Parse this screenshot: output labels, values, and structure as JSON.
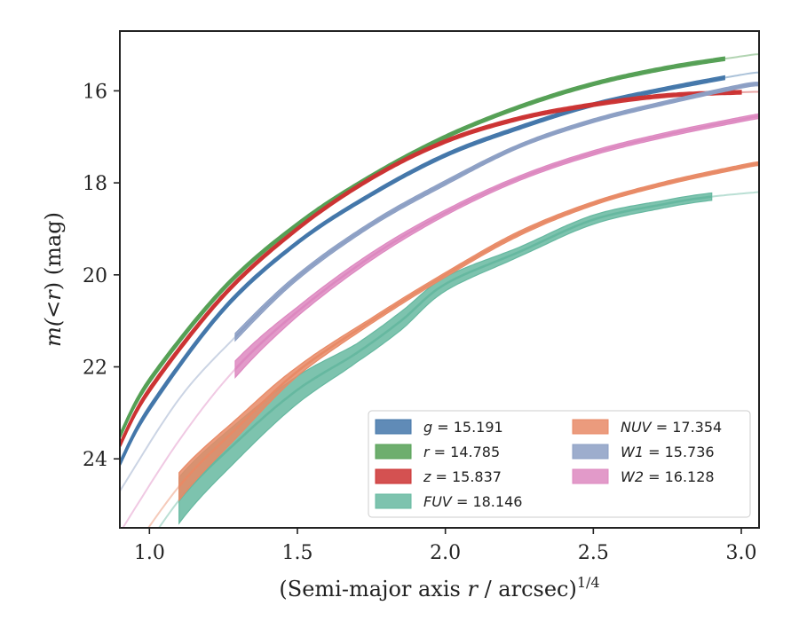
{
  "chart_data": {
    "type": "line",
    "title": "",
    "xlabel_prefix": "(Semi-major axis ",
    "xlabel_var": "r",
    "xlabel_suffix": " / arcsec)",
    "xlabel_exp": "1/4",
    "ylabel_prefix": "m(<",
    "ylabel_var": "r",
    "ylabel_suffix": ") (mag)",
    "xlim": [
      0.9,
      3.06
    ],
    "ylim": [
      25.5,
      14.7
    ],
    "y_inverted": true,
    "xticks": [
      1.0,
      1.5,
      2.0,
      2.5,
      3.0
    ],
    "xtick_labels": [
      "1.0",
      "1.5",
      "2.0",
      "2.5",
      "3.0"
    ],
    "yticks": [
      16,
      18,
      20,
      22,
      24
    ],
    "ytick_labels": [
      "16",
      "18",
      "20",
      "22",
      "24"
    ],
    "grid": false,
    "legend_position": "lower-right",
    "legend_columns": 2,
    "series": [
      {
        "name_var": "g",
        "name_val": " = 15.191",
        "color": "#4477aa",
        "x": [
          0.9,
          1.0,
          1.25,
          1.5,
          1.75,
          2.0,
          2.25,
          2.5,
          2.75,
          3.0,
          3.06
        ],
        "y": [
          24.1,
          22.9,
          20.75,
          19.3,
          18.25,
          17.4,
          16.8,
          16.3,
          15.95,
          15.65,
          15.6
        ],
        "band": [
          0.06,
          0.06,
          0.05,
          0.04,
          0.04,
          0.04,
          0.04,
          0.04,
          0.04,
          0.04,
          0.04
        ],
        "solid_range": [
          0.9,
          2.95
        ]
      },
      {
        "name_var": "r",
        "name_val": " = 14.785",
        "color": "#55a055",
        "x": [
          0.9,
          1.0,
          1.25,
          1.5,
          1.75,
          2.0,
          2.25,
          2.5,
          2.75,
          3.0,
          3.06
        ],
        "y": [
          23.5,
          22.3,
          20.3,
          18.9,
          17.85,
          17.0,
          16.35,
          15.85,
          15.5,
          15.25,
          15.2
        ],
        "band": [
          0.06,
          0.06,
          0.05,
          0.04,
          0.04,
          0.04,
          0.04,
          0.04,
          0.04,
          0.04,
          0.04
        ],
        "solid_range": [
          0.9,
          2.95
        ]
      },
      {
        "name_var": "z",
        "name_val": " = 15.837",
        "color": "#cc3333",
        "x": [
          0.9,
          1.0,
          1.25,
          1.5,
          1.75,
          2.0,
          2.25,
          2.5,
          2.75,
          3.0,
          3.06
        ],
        "y": [
          23.7,
          22.5,
          20.45,
          19.0,
          17.9,
          17.1,
          16.6,
          16.3,
          16.1,
          16.03,
          16.02
        ],
        "band": [
          0.06,
          0.06,
          0.05,
          0.04,
          0.04,
          0.04,
          0.04,
          0.04,
          0.04,
          0.04,
          0.04
        ],
        "solid_range": [
          0.9,
          3.0
        ]
      },
      {
        "name_var": "FUV",
        "name_val": " = 18.146",
        "color": "#66b8a0",
        "x": [
          0.9,
          1.1,
          1.3,
          1.5,
          1.7,
          1.85,
          2.0,
          2.25,
          2.5,
          2.75,
          2.9,
          3.06
        ],
        "y": [
          26.8,
          24.9,
          23.6,
          22.5,
          21.7,
          21.0,
          20.2,
          19.5,
          18.8,
          18.45,
          18.3,
          18.2
        ],
        "band": [
          0.5,
          0.5,
          0.4,
          0.3,
          0.2,
          0.2,
          0.15,
          0.1,
          0.1,
          0.08,
          0.08,
          0.08
        ],
        "solid_range": [
          1.1,
          2.9
        ]
      },
      {
        "name_var": "NUV",
        "name_val": " = 17.354",
        "color": "#e88a66",
        "x": [
          0.9,
          1.1,
          1.3,
          1.5,
          1.75,
          2.0,
          2.25,
          2.5,
          2.75,
          3.0,
          3.06
        ],
        "y": [
          26.4,
          24.6,
          23.3,
          22.1,
          21.0,
          20.0,
          19.1,
          18.45,
          18.0,
          17.65,
          17.58
        ],
        "band": [
          0.3,
          0.3,
          0.2,
          0.1,
          0.06,
          0.05,
          0.05,
          0.04,
          0.04,
          0.04,
          0.04
        ],
        "solid_range": [
          1.1,
          3.06
        ]
      },
      {
        "name_var": "W1",
        "name_val": " = 15.736",
        "color": "#8c9fc4",
        "x": [
          0.9,
          1.1,
          1.29,
          1.5,
          1.75,
          2.0,
          2.25,
          2.5,
          2.75,
          3.0,
          3.06
        ],
        "y": [
          24.7,
          22.7,
          21.35,
          20.05,
          18.9,
          18.0,
          17.2,
          16.65,
          16.25,
          15.9,
          15.85
        ],
        "band": [
          0.1,
          0.1,
          0.08,
          0.06,
          0.05,
          0.05,
          0.04,
          0.04,
          0.04,
          0.04,
          0.04
        ],
        "solid_range": [
          1.29,
          3.06
        ]
      },
      {
        "name_var": "W2",
        "name_val": " = 16.128",
        "color": "#dd88c0",
        "x": [
          0.9,
          1.1,
          1.29,
          1.5,
          1.75,
          2.0,
          2.25,
          2.5,
          2.75,
          3.0,
          3.06
        ],
        "y": [
          25.6,
          23.6,
          22.05,
          20.8,
          19.6,
          18.65,
          17.9,
          17.35,
          16.95,
          16.62,
          16.55
        ],
        "band": [
          0.2,
          0.2,
          0.18,
          0.1,
          0.08,
          0.06,
          0.05,
          0.05,
          0.05,
          0.05,
          0.05
        ],
        "solid_range": [
          1.29,
          3.06
        ]
      }
    ],
    "legend_order": [
      0,
      1,
      2,
      3,
      4,
      5,
      6
    ]
  }
}
